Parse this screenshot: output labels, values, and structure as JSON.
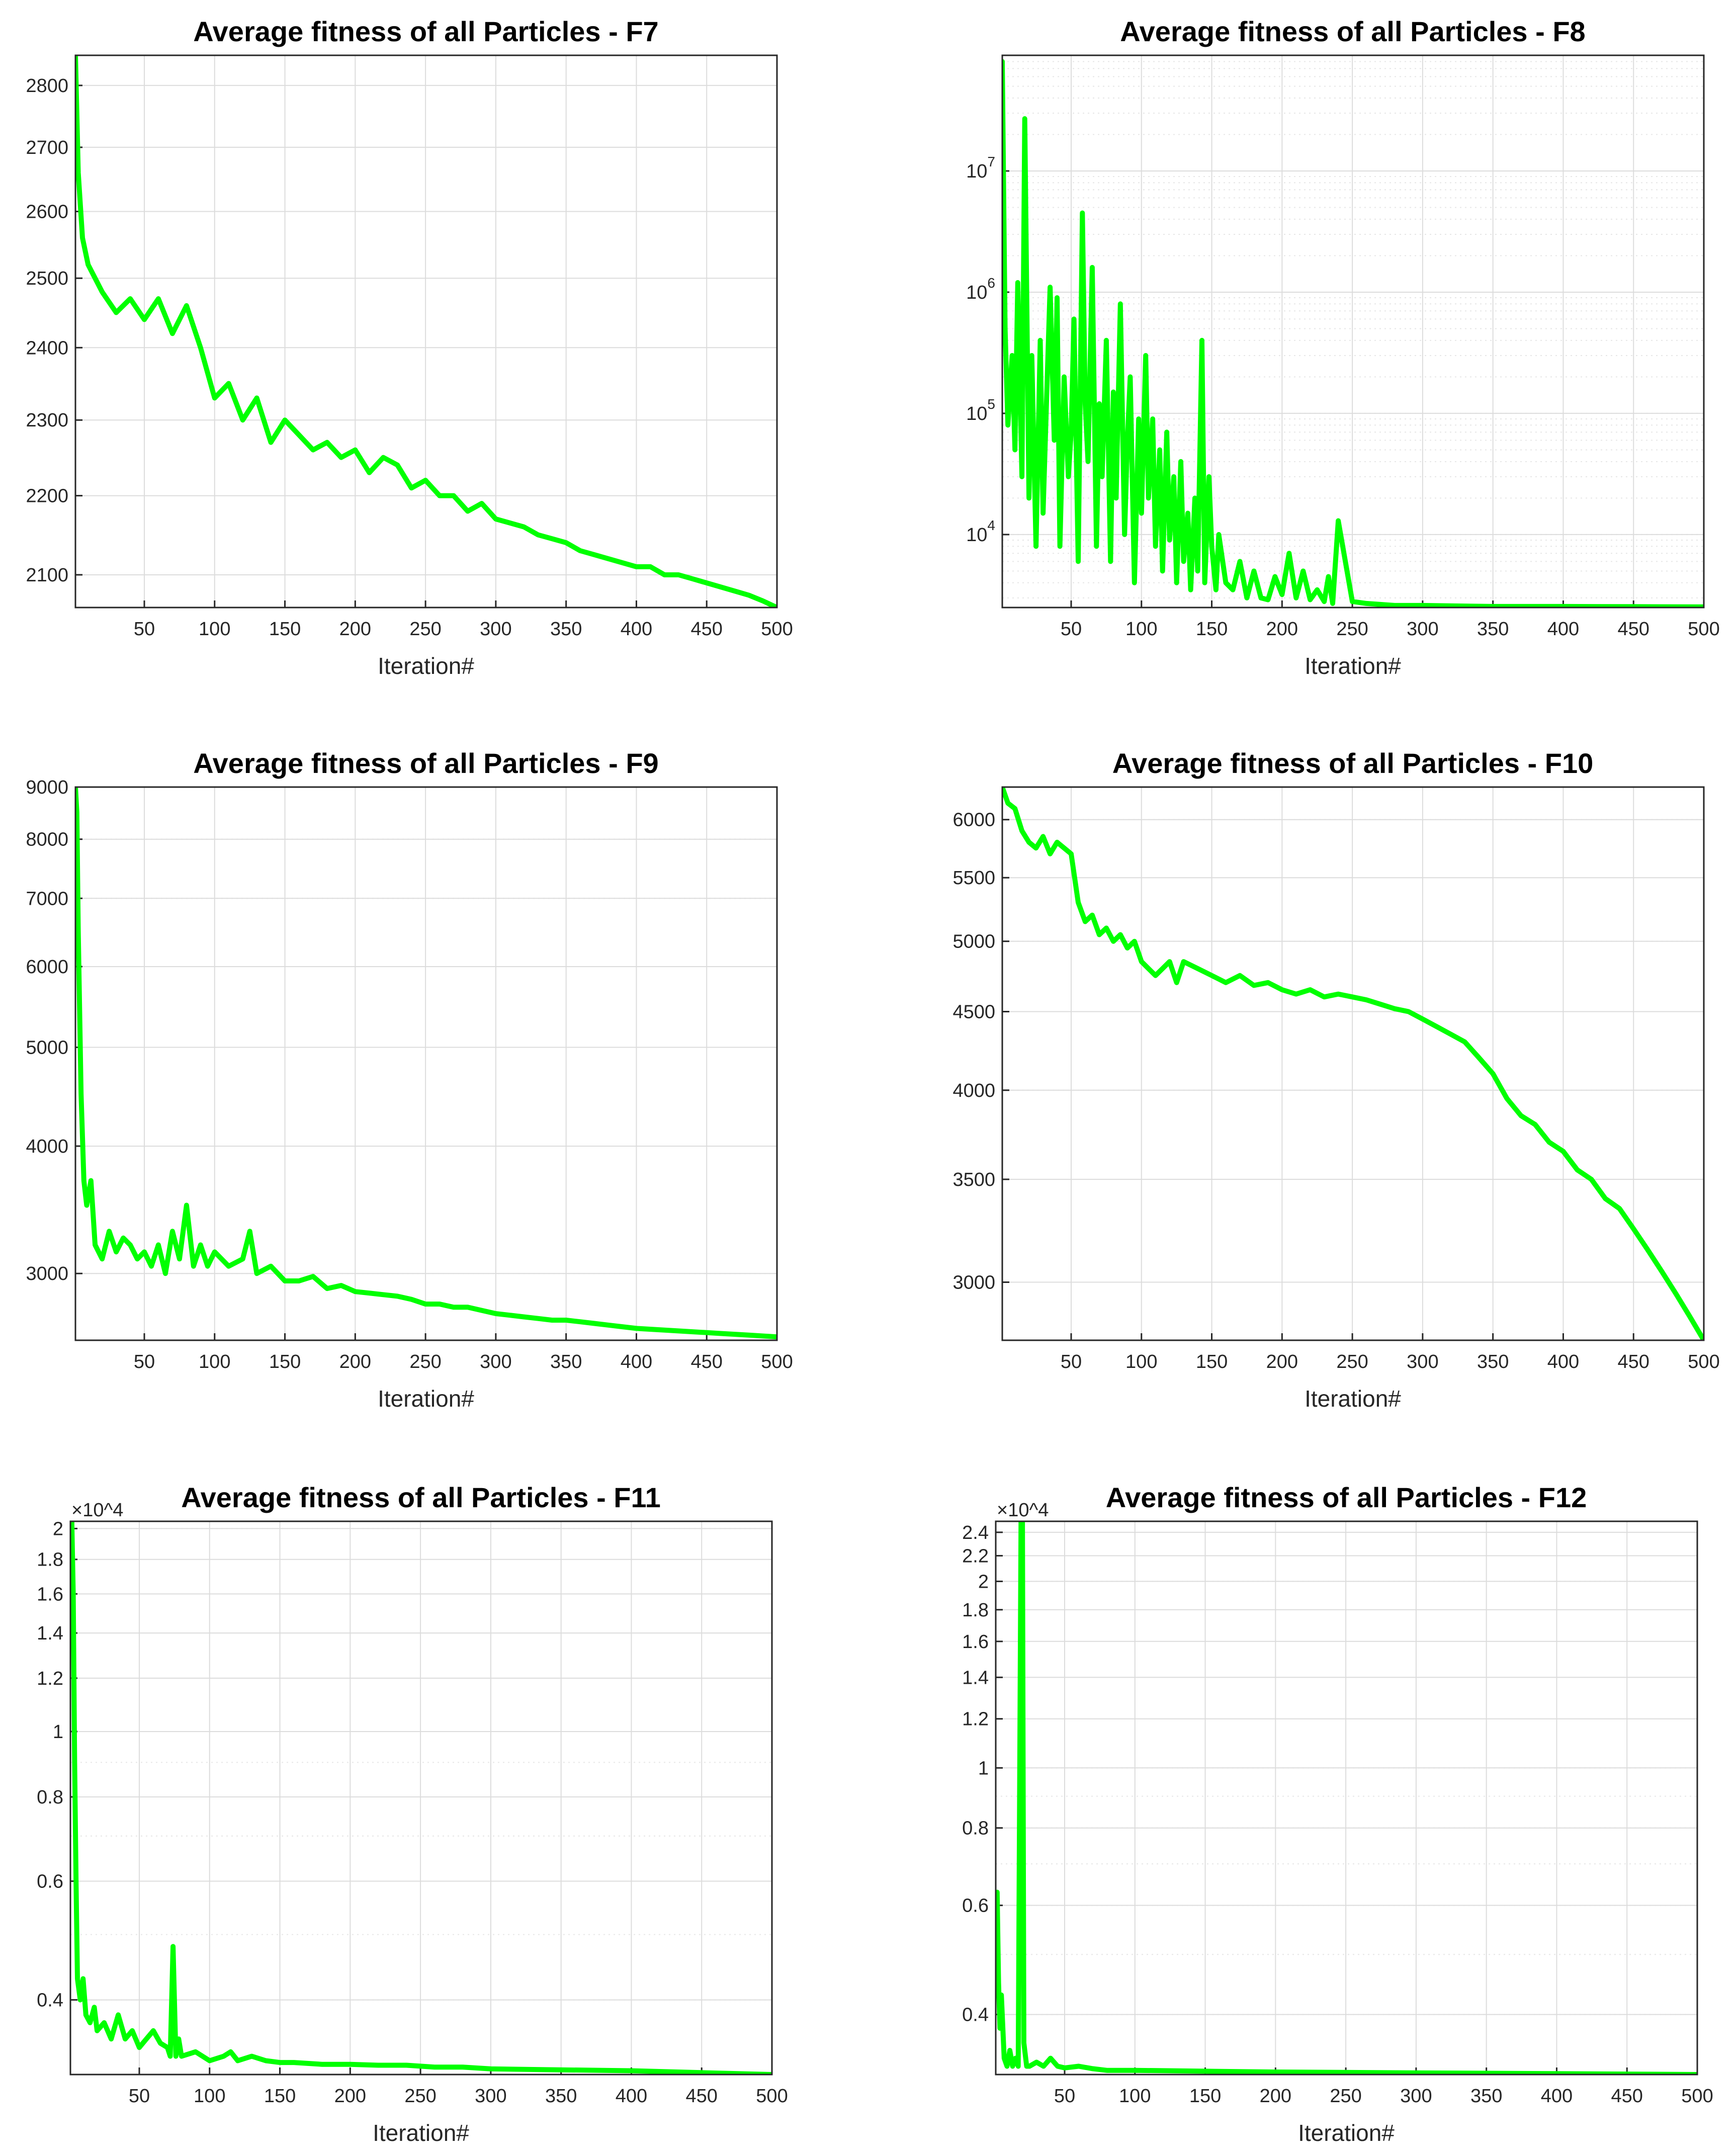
{
  "chart_data": [
    {
      "type": "line",
      "title": "Average fitness of all Particles - F7",
      "xlabel": "Iteration#",
      "ylabel": "",
      "yscale": "log",
      "xlim": [
        1,
        500
      ],
      "ylim": [
        2060,
        2850
      ],
      "xticks": [
        50,
        100,
        150,
        200,
        250,
        300,
        350,
        400,
        450,
        500
      ],
      "xtick_labels": [
        "50",
        "100",
        "150",
        "200",
        "250",
        "300",
        "350",
        "400",
        "450",
        "500"
      ],
      "yticks": [
        2100,
        2200,
        2300,
        2400,
        2500,
        2600,
        2700,
        2800
      ],
      "ytick_labels": [
        "2100",
        "2200",
        "2300",
        "2400",
        "2500",
        "2600",
        "2700",
        "2800"
      ],
      "exponent_label": "",
      "grid": true,
      "color": "#00ff00",
      "series": [
        {
          "name": "F7",
          "x": [
            1,
            3,
            6,
            10,
            20,
            30,
            40,
            50,
            60,
            70,
            80,
            90,
            100,
            110,
            120,
            130,
            140,
            150,
            160,
            170,
            180,
            190,
            200,
            210,
            220,
            230,
            240,
            250,
            260,
            270,
            280,
            290,
            300,
            310,
            320,
            330,
            340,
            350,
            360,
            370,
            380,
            390,
            400,
            410,
            420,
            430,
            440,
            450,
            460,
            470,
            480,
            490,
            500
          ],
          "y": [
            2850,
            2660,
            2560,
            2520,
            2480,
            2450,
            2470,
            2440,
            2470,
            2420,
            2460,
            2400,
            2330,
            2350,
            2300,
            2330,
            2270,
            2300,
            2280,
            2260,
            2270,
            2250,
            2260,
            2230,
            2250,
            2240,
            2210,
            2220,
            2200,
            2200,
            2180,
            2190,
            2170,
            2165,
            2160,
            2150,
            2145,
            2140,
            2130,
            2125,
            2120,
            2115,
            2110,
            2110,
            2100,
            2100,
            2095,
            2090,
            2085,
            2080,
            2075,
            2068,
            2060
          ]
        }
      ]
    },
    {
      "type": "line",
      "title": "Average fitness of all Particles - F8",
      "xlabel": "Iteration#",
      "ylabel": "",
      "yscale": "log",
      "xlim": [
        1,
        500
      ],
      "ylim": [
        2500,
        90000000
      ],
      "xticks": [
        50,
        100,
        150,
        200,
        250,
        300,
        350,
        400,
        450,
        500
      ],
      "xtick_labels": [
        "50",
        "100",
        "150",
        "200",
        "250",
        "300",
        "350",
        "400",
        "450",
        "500"
      ],
      "yticks": [
        10000,
        100000,
        1000000,
        10000000
      ],
      "ytick_labels": [
        "10^4",
        "10^5",
        "10^6",
        "10^7"
      ],
      "exponent_label": "",
      "grid": true,
      "color": "#00ff00",
      "series": [
        {
          "name": "F8",
          "x": [
            1,
            3,
            5,
            8,
            10,
            12,
            15,
            17,
            20,
            22,
            25,
            28,
            30,
            33,
            35,
            38,
            40,
            42,
            45,
            48,
            50,
            52,
            55,
            58,
            60,
            62,
            65,
            68,
            70,
            72,
            75,
            78,
            80,
            82,
            85,
            88,
            90,
            92,
            95,
            98,
            100,
            103,
            105,
            108,
            110,
            113,
            115,
            118,
            120,
            123,
            125,
            128,
            130,
            133,
            135,
            138,
            140,
            143,
            145,
            148,
            150,
            153,
            155,
            160,
            165,
            170,
            175,
            180,
            185,
            190,
            195,
            200,
            205,
            210,
            215,
            220,
            225,
            230,
            233,
            236,
            240,
            250,
            260,
            280,
            300,
            350,
            400,
            450,
            500
          ],
          "y": [
            80000000,
            500000,
            80000,
            300000,
            50000,
            1200000,
            30000,
            27000000,
            20000,
            300000,
            8000,
            400000,
            15000,
            200000,
            1100000,
            60000,
            900000,
            8000,
            200000,
            30000,
            70000,
            600000,
            6000,
            4500000,
            120000,
            40000,
            1600000,
            8000,
            120000,
            30000,
            400000,
            6000,
            150000,
            20000,
            800000,
            10000,
            60000,
            200000,
            4000,
            90000,
            15000,
            300000,
            20000,
            90000,
            8000,
            50000,
            5000,
            70000,
            9000,
            30000,
            4000,
            40000,
            6000,
            15000,
            3500,
            20000,
            5000,
            400000,
            4000,
            30000,
            8000,
            3500,
            10000,
            4000,
            3500,
            6000,
            3000,
            5000,
            3000,
            2900,
            4500,
            3200,
            7000,
            3000,
            5000,
            2900,
            3500,
            2800,
            4500,
            2700,
            13000,
            2800,
            2700,
            2600,
            2600,
            2550,
            2550,
            2540,
            2530
          ]
        }
      ]
    },
    {
      "type": "line",
      "title": "Average fitness of all Particles - F9",
      "xlabel": "Iteration#",
      "ylabel": "",
      "yscale": "log",
      "xlim": [
        1,
        500
      ],
      "ylim": [
        2580,
        9000
      ],
      "xticks": [
        50,
        100,
        150,
        200,
        250,
        300,
        350,
        400,
        450,
        500
      ],
      "xtick_labels": [
        "50",
        "100",
        "150",
        "200",
        "250",
        "300",
        "350",
        "400",
        "450",
        "500"
      ],
      "yticks": [
        3000,
        4000,
        5000,
        6000,
        7000,
        8000,
        9000
      ],
      "ytick_labels": [
        "3000",
        "4000",
        "5000",
        "6000",
        "7000",
        "8000",
        "9000"
      ],
      "exponent_label": "",
      "grid": true,
      "color": "#00ff00",
      "series": [
        {
          "name": "F9",
          "x": [
            1,
            2,
            3,
            5,
            7,
            9,
            12,
            15,
            20,
            25,
            30,
            35,
            40,
            45,
            50,
            55,
            60,
            65,
            70,
            75,
            80,
            85,
            90,
            95,
            100,
            110,
            120,
            125,
            130,
            140,
            150,
            160,
            170,
            180,
            190,
            200,
            210,
            220,
            230,
            240,
            250,
            260,
            270,
            280,
            290,
            300,
            310,
            320,
            330,
            340,
            350,
            360,
            370,
            380,
            390,
            400,
            420,
            440,
            460,
            480,
            500
          ],
          "y": [
            9000,
            8500,
            6500,
            4500,
            3700,
            3500,
            3700,
            3200,
            3100,
            3300,
            3150,
            3250,
            3200,
            3100,
            3150,
            3050,
            3200,
            3000,
            3300,
            3100,
            3500,
            3050,
            3200,
            3050,
            3150,
            3050,
            3100,
            3300,
            3000,
            3050,
            2950,
            2950,
            2980,
            2900,
            2920,
            2880,
            2870,
            2860,
            2850,
            2830,
            2800,
            2800,
            2780,
            2780,
            2760,
            2740,
            2730,
            2720,
            2710,
            2700,
            2700,
            2690,
            2680,
            2670,
            2660,
            2650,
            2640,
            2630,
            2620,
            2610,
            2600
          ]
        }
      ]
    },
    {
      "type": "line",
      "title": "Average fitness of all Particles - F10",
      "xlabel": "Iteration#",
      "ylabel": "",
      "yscale": "log",
      "xlim": [
        1,
        500
      ],
      "ylim": [
        2750,
        6300
      ],
      "xticks": [
        50,
        100,
        150,
        200,
        250,
        300,
        350,
        400,
        450,
        500
      ],
      "xtick_labels": [
        "50",
        "100",
        "150",
        "200",
        "250",
        "300",
        "350",
        "400",
        "450",
        "500"
      ],
      "yticks": [
        3000,
        3500,
        4000,
        4500,
        5000,
        5500,
        6000
      ],
      "ytick_labels": [
        "3000",
        "3500",
        "4000",
        "4500",
        "5000",
        "5500",
        "6000"
      ],
      "exponent_label": "",
      "grid": true,
      "color": "#00ff00",
      "series": [
        {
          "name": "F10",
          "x": [
            1,
            5,
            10,
            15,
            20,
            25,
            30,
            35,
            40,
            45,
            50,
            55,
            60,
            65,
            70,
            75,
            80,
            85,
            90,
            95,
            100,
            105,
            110,
            115,
            120,
            125,
            130,
            140,
            150,
            160,
            170,
            180,
            190,
            200,
            210,
            220,
            230,
            240,
            250,
            260,
            270,
            280,
            290,
            300,
            310,
            320,
            330,
            340,
            350,
            360,
            370,
            380,
            390,
            400,
            410,
            420,
            430,
            440,
            450,
            460,
            470,
            480,
            490,
            500
          ],
          "y": [
            6300,
            6150,
            6100,
            5900,
            5800,
            5750,
            5850,
            5700,
            5800,
            5750,
            5700,
            5300,
            5150,
            5200,
            5050,
            5100,
            5000,
            5050,
            4950,
            5000,
            4850,
            4800,
            4750,
            4800,
            4850,
            4700,
            4850,
            4800,
            4750,
            4700,
            4750,
            4680,
            4700,
            4650,
            4620,
            4650,
            4600,
            4620,
            4600,
            4580,
            4550,
            4520,
            4500,
            4450,
            4400,
            4350,
            4300,
            4200,
            4100,
            3950,
            3850,
            3800,
            3700,
            3650,
            3550,
            3500,
            3400,
            3350,
            3250,
            3150,
            3050,
            2950,
            2850,
            2750
          ]
        }
      ]
    },
    {
      "type": "line",
      "title": "Average fitness of all Particles - F11",
      "xlabel": "Iteration#",
      "ylabel": "",
      "yscale": "log",
      "xlim": [
        1,
        500
      ],
      "ylim": [
        3100,
        20500
      ],
      "xticks": [
        50,
        100,
        150,
        200,
        250,
        300,
        350,
        400,
        450,
        500
      ],
      "xtick_labels": [
        "50",
        "100",
        "150",
        "200",
        "250",
        "300",
        "350",
        "400",
        "450",
        "500"
      ],
      "yticks": [
        4000,
        6000,
        8000,
        10000,
        12000,
        14000,
        16000,
        18000,
        20000
      ],
      "ytick_labels": [
        "0.4",
        "0.6",
        "0.8",
        "1",
        "1.2",
        "1.4",
        "1.6",
        "1.8",
        "2"
      ],
      "exponent_label": "×10^4",
      "grid": true,
      "color": "#00ff00",
      "series": [
        {
          "name": "F11",
          "x": [
            1,
            2,
            3,
            4,
            5,
            6,
            8,
            10,
            12,
            15,
            18,
            20,
            25,
            30,
            35,
            40,
            45,
            50,
            55,
            60,
            65,
            70,
            72,
            74,
            76,
            78,
            80,
            90,
            100,
            110,
            115,
            120,
            130,
            140,
            150,
            160,
            180,
            200,
            220,
            240,
            260,
            280,
            300,
            350,
            400,
            450,
            500
          ],
          "y": [
            14000,
            20500,
            16000,
            9000,
            6000,
            4300,
            4000,
            4300,
            3800,
            3700,
            3900,
            3600,
            3700,
            3500,
            3800,
            3500,
            3600,
            3400,
            3500,
            3600,
            3450,
            3400,
            3300,
            4800,
            3300,
            3500,
            3300,
            3350,
            3250,
            3300,
            3350,
            3250,
            3300,
            3250,
            3230,
            3230,
            3210,
            3210,
            3200,
            3200,
            3180,
            3180,
            3160,
            3150,
            3140,
            3120,
            3100
          ]
        }
      ]
    },
    {
      "type": "line",
      "title": "Average fitness of all Particles - F12",
      "xlabel": "Iteration#",
      "ylabel": "",
      "yscale": "log",
      "xlim": [
        1,
        500
      ],
      "ylim": [
        3200,
        25000
      ],
      "xticks": [
        50,
        100,
        150,
        200,
        250,
        300,
        350,
        400,
        450,
        500
      ],
      "xtick_labels": [
        "50",
        "100",
        "150",
        "200",
        "250",
        "300",
        "350",
        "400",
        "450",
        "500"
      ],
      "yticks": [
        4000,
        6000,
        8000,
        10000,
        12000,
        14000,
        16000,
        18000,
        20000,
        22000,
        24000
      ],
      "ytick_labels": [
        "0.4",
        "0.6",
        "0.8",
        "1",
        "1.2",
        "1.4",
        "1.6",
        "1.8",
        "2",
        "2.2",
        "2.4"
      ],
      "exponent_label": "×10^4",
      "grid": true,
      "color": "#00ff00",
      "series": [
        {
          "name": "F12",
          "x": [
            1,
            2,
            3,
            4,
            5,
            7,
            9,
            11,
            13,
            15,
            17,
            19,
            20,
            21,
            23,
            25,
            30,
            35,
            40,
            45,
            50,
            60,
            70,
            80,
            100,
            150,
            200,
            300,
            400,
            500
          ],
          "y": [
            5500,
            6300,
            4500,
            3800,
            4300,
            3400,
            3300,
            3500,
            3300,
            3400,
            3300,
            25000,
            25000,
            3600,
            3300,
            3300,
            3350,
            3300,
            3400,
            3300,
            3280,
            3300,
            3270,
            3250,
            3250,
            3240,
            3230,
            3220,
            3210,
            3200
          ]
        }
      ]
    }
  ]
}
